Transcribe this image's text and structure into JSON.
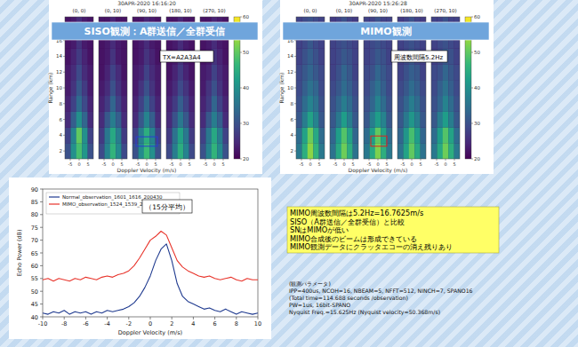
{
  "chart_data": [
    {
      "type": "heatmap",
      "title": "30APR-2020 16:16:20",
      "banner": "SISO観測：A群送信／全群受信",
      "note": "TX=A2A3A4",
      "x_label": "Doppler Velocity (m/s)",
      "y_label": "Range (km)",
      "xlim": [
        -8,
        8
      ],
      "xticks": [
        -5,
        0,
        5
      ],
      "ylim": [
        1,
        19
      ],
      "yticks": [
        2,
        4,
        6,
        8,
        10,
        12,
        14,
        16,
        18
      ],
      "x_edges": [
        -8,
        -4.8,
        -1.6,
        1.6,
        4.8,
        8
      ],
      "y_edges": [
        1,
        3,
        5,
        7,
        9,
        11,
        13,
        15,
        17,
        19
      ],
      "color_range": [
        20,
        60
      ],
      "color_ticks": [
        20,
        30,
        40,
        50,
        60
      ],
      "panels": [
        {
          "name": "(0, 0)",
          "cells": [
            [
              30,
              40,
              48,
              41,
              30
            ],
            [
              28,
              38,
              50,
              40,
              28
            ],
            [
              25,
              32,
              40,
              33,
              25
            ],
            [
              24,
              28,
              34,
              29,
              24
            ],
            [
              23,
              26,
              31,
              27,
              23
            ],
            [
              23,
              25,
              29,
              25,
              23
            ],
            [
              22,
              24,
              27,
              24,
              22
            ],
            [
              22,
              23,
              26,
              23,
              22
            ],
            [
              22,
              23,
              25,
              23,
              22
            ]
          ]
        },
        {
          "name": "(0, 10)",
          "cells": [
            [
              29,
              38,
              46,
              39,
              29
            ],
            [
              27,
              36,
              44,
              37,
              27
            ],
            [
              25,
              31,
              37,
              32,
              25
            ],
            [
              24,
              27,
              33,
              28,
              24
            ],
            [
              23,
              25,
              30,
              26,
              23
            ],
            [
              22,
              24,
              28,
              25,
              22
            ],
            [
              22,
              23,
              26,
              23,
              22
            ],
            [
              22,
              23,
              25,
              23,
              22
            ],
            [
              22,
              22,
              24,
              22,
              22
            ]
          ]
        },
        {
          "name": "(90, 10)",
          "cells": [
            [
              30,
              39,
              47,
              40,
              30
            ],
            [
              28,
              37,
              45,
              38,
              28
            ],
            [
              25,
              31,
              38,
              32,
              25
            ],
            [
              24,
              28,
              33,
              28,
              24
            ],
            [
              23,
              26,
              30,
              26,
              23
            ],
            [
              23,
              24,
              28,
              25,
              23
            ],
            [
              22,
              23,
              26,
              24,
              22
            ],
            [
              22,
              23,
              25,
              23,
              22
            ],
            [
              22,
              22,
              24,
              23,
              22
            ]
          ],
          "highlight": {
            "xlim": [
              -6,
              6
            ],
            "ylim": [
              2.6,
              3.8
            ],
            "color": "#2a3fd0"
          }
        },
        {
          "name": "(180, 10)",
          "cells": [
            [
              29,
              37,
              45,
              38,
              29
            ],
            [
              27,
              35,
              43,
              36,
              27
            ],
            [
              25,
              30,
              36,
              31,
              25
            ],
            [
              24,
              27,
              32,
              28,
              24
            ],
            [
              23,
              25,
              29,
              26,
              23
            ],
            [
              22,
              24,
              27,
              24,
              22
            ],
            [
              22,
              23,
              26,
              23,
              22
            ],
            [
              22,
              23,
              25,
              23,
              22
            ],
            [
              22,
              22,
              24,
              22,
              22
            ]
          ]
        },
        {
          "name": "(270, 10)",
          "cells": [
            [
              30,
              38,
              46,
              39,
              30
            ],
            [
              28,
              36,
              44,
              37,
              28
            ],
            [
              25,
              31,
              37,
              32,
              25
            ],
            [
              24,
              27,
              33,
              28,
              24
            ],
            [
              23,
              26,
              30,
              26,
              23
            ],
            [
              23,
              24,
              28,
              25,
              23
            ],
            [
              22,
              23,
              26,
              24,
              22
            ],
            [
              22,
              23,
              25,
              23,
              22
            ],
            [
              22,
              22,
              24,
              23,
              22
            ]
          ]
        }
      ]
    },
    {
      "type": "heatmap",
      "title": "30APR-2020 15:26:28",
      "banner": "MIMO観測",
      "note": "周波数間隔5.2Hz",
      "x_label": "Doppler Velocity (m/s)",
      "y_label": "Range (km)",
      "xlim": [
        -8,
        8
      ],
      "xticks": [
        -5,
        0,
        5
      ],
      "ylim": [
        1,
        19
      ],
      "yticks": [
        2,
        4,
        6,
        8,
        10,
        12,
        14,
        16,
        18
      ],
      "x_edges": [
        -8,
        -4.8,
        -1.6,
        1.6,
        4.8,
        8
      ],
      "y_edges": [
        1,
        3,
        5,
        7,
        9,
        11,
        13,
        15,
        17,
        19
      ],
      "color_range": [
        20,
        60
      ],
      "color_ticks": [
        20,
        30,
        40,
        50,
        60
      ],
      "panels": [
        {
          "name": "(0, 0)",
          "cells": [
            [
              36,
              45,
              53,
              46,
              36
            ],
            [
              34,
              43,
              51,
              44,
              34
            ],
            [
              31,
              37,
              43,
              38,
              31
            ],
            [
              30,
              34,
              38,
              35,
              30
            ],
            [
              29,
              32,
              35,
              33,
              29
            ],
            [
              29,
              31,
              33,
              31,
              29
            ],
            [
              28,
              30,
              32,
              30,
              28
            ],
            [
              28,
              29,
              31,
              29,
              28
            ],
            [
              28,
              29,
              30,
              29,
              28
            ]
          ]
        },
        {
          "name": "(0, 10)",
          "cells": [
            [
              35,
              44,
              51,
              45,
              35
            ],
            [
              33,
              42,
              49,
              43,
              33
            ],
            [
              31,
              36,
              42,
              37,
              31
            ],
            [
              30,
              33,
              37,
              34,
              30
            ],
            [
              29,
              31,
              34,
              32,
              29
            ],
            [
              28,
              30,
              33,
              31,
              28
            ],
            [
              28,
              29,
              31,
              30,
              28
            ],
            [
              28,
              29,
              30,
              29,
              28
            ],
            [
              27,
              28,
              30,
              28,
              27
            ]
          ]
        },
        {
          "name": "(90, 10)",
          "cells": [
            [
              36,
              44,
              52,
              45,
              36
            ],
            [
              34,
              42,
              50,
              43,
              34
            ],
            [
              31,
              37,
              42,
              38,
              31
            ],
            [
              30,
              33,
              38,
              34,
              30
            ],
            [
              29,
              32,
              35,
              32,
              29
            ],
            [
              29,
              30,
              33,
              31,
              29
            ],
            [
              28,
              29,
              31,
              30,
              28
            ],
            [
              28,
              29,
              30,
              29,
              28
            ],
            [
              28,
              28,
              30,
              28,
              28
            ]
          ],
          "highlight": {
            "xlim": [
              -4,
              5
            ],
            "ylim": [
              2.6,
              3.9
            ],
            "color": "#e02020"
          }
        },
        {
          "name": "(180, 10)",
          "cells": [
            [
              35,
              43,
              50,
              44,
              35
            ],
            [
              33,
              41,
              48,
              42,
              33
            ],
            [
              31,
              36,
              41,
              37,
              31
            ],
            [
              30,
              33,
              37,
              34,
              30
            ],
            [
              29,
              31,
              34,
              32,
              29
            ],
            [
              28,
              30,
              32,
              31,
              28
            ],
            [
              28,
              29,
              31,
              29,
              28
            ],
            [
              28,
              29,
              30,
              29,
              28
            ],
            [
              27,
              28,
              30,
              28,
              27
            ]
          ]
        },
        {
          "name": "(270, 10)",
          "cells": [
            [
              36,
              44,
              51,
              45,
              36
            ],
            [
              34,
              42,
              49,
              43,
              34
            ],
            [
              31,
              37,
              42,
              37,
              31
            ],
            [
              30,
              33,
              38,
              34,
              30
            ],
            [
              29,
              32,
              35,
              32,
              29
            ],
            [
              29,
              30,
              33,
              31,
              29
            ],
            [
              28,
              29,
              31,
              30,
              28
            ],
            [
              28,
              29,
              30,
              29,
              28
            ],
            [
              28,
              28,
              30,
              28,
              28
            ]
          ]
        }
      ]
    },
    {
      "type": "line",
      "title": "（15分平均）",
      "x_label": "Doppler Velocity (m/s)",
      "y_label": "Echo Power (dB)",
      "xlim": [
        -10,
        10
      ],
      "xticks": [
        -10,
        -8,
        -6,
        -4,
        -2,
        0,
        2,
        4,
        6,
        8,
        10
      ],
      "ylim": [
        40,
        90
      ],
      "yticks": [
        40,
        45,
        50,
        55,
        60,
        65,
        70,
        75,
        80,
        85,
        90
      ],
      "grid": false,
      "legend": "upper left",
      "x": [
        -10,
        -9.5,
        -9,
        -8.5,
        -8,
        -7.5,
        -7,
        -6.5,
        -6,
        -5.5,
        -5,
        -4.5,
        -4,
        -3.5,
        -3,
        -2.5,
        -2,
        -1.5,
        -1,
        -0.5,
        0,
        0.5,
        1,
        1.5,
        2,
        2.5,
        3,
        3.5,
        4,
        4.5,
        5,
        5.5,
        6,
        6.5,
        7,
        7.5,
        8,
        8.5,
        9,
        9.5,
        10
      ],
      "series": [
        {
          "name": "Normal_observation_1601_1616_200430",
          "color": "#1f3a8f",
          "values": [
            41.5,
            41,
            42,
            41.5,
            42.5,
            41,
            42,
            41.5,
            42,
            41,
            42,
            41.5,
            42.5,
            42,
            42.5,
            43,
            44,
            45.5,
            48,
            51.5,
            56,
            62,
            66.5,
            68.5,
            62,
            53,
            48,
            46,
            45,
            44,
            43,
            43.5,
            42.5,
            42,
            43,
            42,
            41,
            42,
            41.5,
            41,
            41.5
          ]
        },
        {
          "name": "MIMO_observation_1524_1539_200430",
          "color": "#e8332a",
          "values": [
            54.5,
            55,
            54,
            55,
            54.5,
            54,
            55,
            54.5,
            55.5,
            55,
            54.5,
            55.5,
            56,
            55.5,
            56.5,
            57,
            58,
            60,
            63,
            66.5,
            70,
            71.5,
            73.5,
            72,
            67,
            62,
            59.5,
            58,
            57,
            56,
            55.5,
            56,
            55,
            54.5,
            55,
            55.5,
            54.5,
            54,
            55,
            54.5,
            54.5
          ]
        }
      ]
    }
  ],
  "notes": {
    "summary": [
      "MIMO周波数間隔は5.2Hz=16.7625m/s",
      "SISO（A群送信／全群受信）と比較",
      "SNはMIMOが低い",
      "MIMO合成後のビームは形成できている",
      "MIMO観測データにクラッタエコーの消え残りあり"
    ],
    "parameters": [
      "(観測パラメータ)",
      "IPP=400us, NCOH=16, NBEAM=5, NFFT=512, NINCH=7, SPANO16",
      "(Total time=114.688 seconds /observation)",
      "PW=1us, 16bit-SPANO",
      "Nyquist Freq.=15.625Hz (Nyquist velocity=50.368m/s)"
    ]
  }
}
